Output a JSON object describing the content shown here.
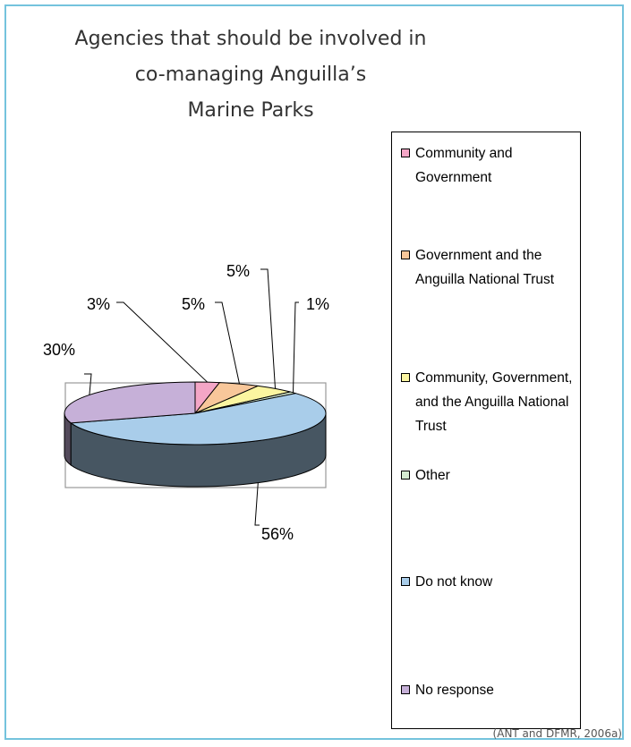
{
  "chart_data": {
    "type": "pie",
    "title_lines": [
      "Agencies that should be involved in",
      "co-managing Anguilla’s",
      "Marine Parks"
    ],
    "slices": [
      {
        "label": "Community and Government",
        "value": 3,
        "display": "3%",
        "color": "#f4a6c6"
      },
      {
        "label": "Government and the Anguilla National Trust",
        "value": 5,
        "display": "5%",
        "color": "#f8c79a"
      },
      {
        "label": "Community, Government, and the Anguilla National Trust",
        "value": 5,
        "display": "5%",
        "color": "#fbf5a0"
      },
      {
        "label": "Other",
        "value": 1,
        "display": "1%",
        "color": "#d4ead0"
      },
      {
        "label": "Do not know",
        "value": 56,
        "display": "56%",
        "color": "#a9cdea"
      },
      {
        "label": "No response",
        "value": 30,
        "display": "30%",
        "color": "#c6b0d8"
      }
    ],
    "legend_position": "right",
    "three_d": true
  },
  "legend": [
    {
      "text": "Community and Government"
    },
    {
      "text": "Government and the Anguilla National Trust"
    },
    {
      "text": "Community, Government, and the Anguilla National Trust"
    },
    {
      "text": "Other"
    },
    {
      "text": "Do not know"
    },
    {
      "text": "No response"
    }
  ],
  "source": "(ANT and DFMR, 2006a)"
}
